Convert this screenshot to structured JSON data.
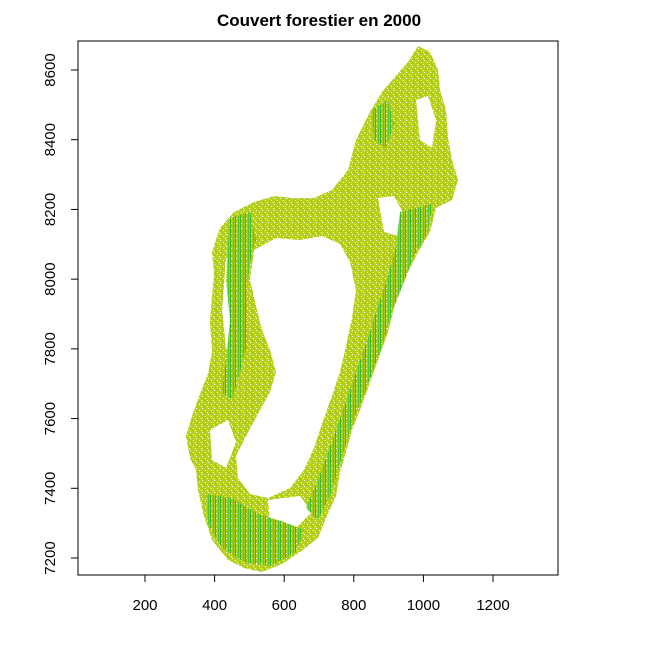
{
  "chart_data": {
    "type": "map",
    "title": "Couvert forestier en 2000",
    "x_ticks": [
      200,
      400,
      600,
      800,
      1000,
      1200
    ],
    "y_ticks": [
      7200,
      7400,
      7600,
      7800,
      8000,
      8200,
      8400,
      8600
    ],
    "xlim": [
      0,
      1380
    ],
    "ylim": [
      7175,
      8680
    ],
    "grid": false,
    "legend": "none",
    "colors": {
      "forest_main": "#b4cd1a",
      "forest_dense": "#3fbd2e",
      "forest_light": "#c9d64a"
    }
  }
}
